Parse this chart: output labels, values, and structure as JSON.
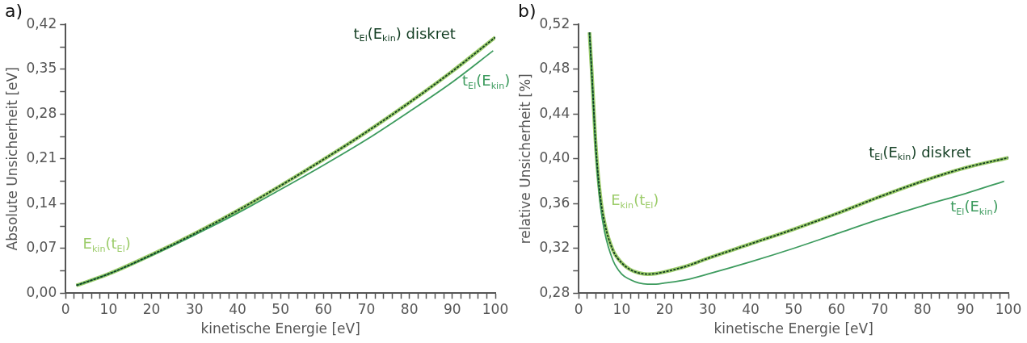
{
  "chart_data": [
    {
      "type": "line",
      "title": "a)",
      "xlabel": "kinetische Energie [eV]",
      "ylabel": "Absolute Unsicherheit [eV]",
      "xlim": [
        0,
        100
      ],
      "ylim": [
        0,
        0.42
      ],
      "xticks": [
        0,
        {
          "value": 2,
          "label": null
        },
        {
          "value": 4,
          "label": null
        },
        {
          "value": 6,
          "label": null
        },
        {
          "value": 8,
          "label": null
        },
        10,
        {
          "value": 12,
          "label": null
        },
        {
          "value": 14,
          "label": null
        },
        {
          "value": 16,
          "label": null
        },
        {
          "value": 18,
          "label": null
        },
        20,
        {
          "value": 22,
          "label": null
        },
        {
          "value": 24,
          "label": null
        },
        {
          "value": 26,
          "label": null
        },
        {
          "value": 28,
          "label": null
        },
        30,
        {
          "value": 32,
          "label": null
        },
        {
          "value": 34,
          "label": null
        },
        {
          "value": 36,
          "label": null
        },
        {
          "value": 38,
          "label": null
        },
        40,
        {
          "value": 42,
          "label": null
        },
        {
          "value": 44,
          "label": null
        },
        {
          "value": 46,
          "label": null
        },
        {
          "value": 48,
          "label": null
        },
        50,
        {
          "value": 52,
          "label": null
        },
        {
          "value": 54,
          "label": null
        },
        {
          "value": 56,
          "label": null
        },
        {
          "value": 58,
          "label": null
        },
        60,
        {
          "value": 62,
          "label": null
        },
        {
          "value": 64,
          "label": null
        },
        {
          "value": 66,
          "label": null
        },
        {
          "value": 68,
          "label": null
        },
        70,
        {
          "value": 72,
          "label": null
        },
        {
          "value": 74,
          "label": null
        },
        {
          "value": 76,
          "label": null
        },
        {
          "value": 78,
          "label": null
        },
        80,
        {
          "value": 82,
          "label": null
        },
        {
          "value": 84,
          "label": null
        },
        {
          "value": 86,
          "label": null
        },
        {
          "value": 88,
          "label": null
        },
        90,
        {
          "value": 92,
          "label": null
        },
        {
          "value": 94,
          "label": null
        },
        {
          "value": 96,
          "label": null
        },
        {
          "value": 98,
          "label": null
        },
        100
      ],
      "yticks": [
        {
          "value": 0,
          "label": "0,00"
        },
        {
          "value": 0.035,
          "label": null
        },
        {
          "value": 0.07,
          "label": "0,07"
        },
        {
          "value": 0.105,
          "label": null
        },
        {
          "value": 0.14,
          "label": "0,14"
        },
        {
          "value": 0.175,
          "label": null
        },
        {
          "value": 0.21,
          "label": "0,21"
        },
        {
          "value": 0.245,
          "label": null
        },
        {
          "value": 0.28,
          "label": "0,28"
        },
        {
          "value": 0.315,
          "label": null
        },
        {
          "value": 0.35,
          "label": "0,35"
        },
        {
          "value": 0.385,
          "label": null
        },
        {
          "value": 0.42,
          "label": "0,42"
        }
      ],
      "grid": false,
      "legend": false,
      "marker": "none",
      "series": [
        {
          "name": "E$_{kin}$(t$_{El}$)",
          "color": "#9ccc6a",
          "line_style": "solid",
          "x": [
            2.5,
            10,
            20,
            30,
            40,
            50,
            60,
            70,
            80,
            90,
            100
          ],
          "values": [
            0.012,
            0.03,
            0.06,
            0.093,
            0.129,
            0.168,
            0.209,
            0.252,
            0.298,
            0.347,
            0.4
          ]
        },
        {
          "name": "t$_{El}$(E$_{kin}$) diskret",
          "color": "#123d22",
          "line_style": "dashed",
          "x": [
            2.5,
            10,
            20,
            30,
            40,
            50,
            60,
            70,
            80,
            90,
            100
          ],
          "values": [
            0.012,
            0.03,
            0.06,
            0.093,
            0.129,
            0.168,
            0.209,
            0.252,
            0.298,
            0.347,
            0.4
          ]
        },
        {
          "name": "t$_{El}$(E$_{kin}$)",
          "color": "#3d9b5e",
          "line_style": "solid",
          "x": [
            2.5,
            10,
            20,
            30,
            40,
            50,
            60,
            70,
            80,
            90,
            99.5
          ],
          "values": [
            0.012,
            0.03,
            0.059,
            0.091,
            0.125,
            0.162,
            0.2,
            0.24,
            0.284,
            0.33,
            0.379
          ]
        }
      ]
    },
    {
      "type": "line",
      "title": "b)",
      "xlabel": "kinetische Energie [eV]",
      "ylabel": "relative Unsicherheit [%]",
      "xlim": [
        0,
        100
      ],
      "ylim": [
        0.28,
        0.52
      ],
      "xticks": [
        0,
        {
          "value": 2,
          "label": null
        },
        {
          "value": 4,
          "label": null
        },
        {
          "value": 6,
          "label": null
        },
        {
          "value": 8,
          "label": null
        },
        10,
        {
          "value": 12,
          "label": null
        },
        {
          "value": 14,
          "label": null
        },
        {
          "value": 16,
          "label": null
        },
        {
          "value": 18,
          "label": null
        },
        20,
        {
          "value": 22,
          "label": null
        },
        {
          "value": 24,
          "label": null
        },
        {
          "value": 26,
          "label": null
        },
        {
          "value": 28,
          "label": null
        },
        30,
        {
          "value": 32,
          "label": null
        },
        {
          "value": 34,
          "label": null
        },
        {
          "value": 36,
          "label": null
        },
        {
          "value": 38,
          "label": null
        },
        40,
        {
          "value": 42,
          "label": null
        },
        {
          "value": 44,
          "label": null
        },
        {
          "value": 46,
          "label": null
        },
        {
          "value": 48,
          "label": null
        },
        50,
        {
          "value": 52,
          "label": null
        },
        {
          "value": 54,
          "label": null
        },
        {
          "value": 56,
          "label": null
        },
        {
          "value": 58,
          "label": null
        },
        60,
        {
          "value": 62,
          "label": null
        },
        {
          "value": 64,
          "label": null
        },
        {
          "value": 66,
          "label": null
        },
        {
          "value": 68,
          "label": null
        },
        70,
        {
          "value": 72,
          "label": null
        },
        {
          "value": 74,
          "label": null
        },
        {
          "value": 76,
          "label": null
        },
        {
          "value": 78,
          "label": null
        },
        80,
        {
          "value": 82,
          "label": null
        },
        {
          "value": 84,
          "label": null
        },
        {
          "value": 86,
          "label": null
        },
        {
          "value": 88,
          "label": null
        },
        90,
        {
          "value": 92,
          "label": null
        },
        {
          "value": 94,
          "label": null
        },
        {
          "value": 96,
          "label": null
        },
        {
          "value": 98,
          "label": null
        },
        100
      ],
      "yticks": [
        {
          "value": 0.28,
          "label": "0,28"
        },
        {
          "value": 0.3,
          "label": null
        },
        {
          "value": 0.32,
          "label": "0,32"
        },
        {
          "value": 0.34,
          "label": null
        },
        {
          "value": 0.36,
          "label": "0,36"
        },
        {
          "value": 0.38,
          "label": null
        },
        {
          "value": 0.4,
          "label": "0,40"
        },
        {
          "value": 0.42,
          "label": null
        },
        {
          "value": 0.44,
          "label": "0,44"
        },
        {
          "value": 0.46,
          "label": null
        },
        {
          "value": 0.48,
          "label": "0,48"
        },
        {
          "value": 0.5,
          "label": null
        },
        {
          "value": 0.52,
          "label": "0,52"
        }
      ],
      "grid": false,
      "legend": false,
      "marker": "none",
      "series": [
        {
          "name": "E$_{kin}$(t$_{El}$)",
          "color": "#9ccc6a",
          "line_style": "solid",
          "x": [
            2.5,
            3,
            4,
            5,
            6,
            8,
            10,
            12,
            14,
            16,
            18,
            20,
            25,
            30,
            40,
            50,
            60,
            70,
            80,
            90,
            100
          ],
          "values": [
            0.513,
            0.48,
            0.41,
            0.367,
            0.343,
            0.318,
            0.307,
            0.301,
            0.298,
            0.297,
            0.2975,
            0.299,
            0.304,
            0.311,
            0.324,
            0.337,
            0.351,
            0.366,
            0.38,
            0.392,
            0.401
          ]
        },
        {
          "name": "t$_{El}$(E$_{kin}$) diskret",
          "color": "#123d22",
          "line_style": "dashed",
          "x": [
            2.5,
            3,
            4,
            5,
            6,
            8,
            10,
            12,
            14,
            16,
            18,
            20,
            25,
            30,
            40,
            50,
            60,
            70,
            80,
            90,
            100
          ],
          "values": [
            0.513,
            0.48,
            0.41,
            0.367,
            0.343,
            0.318,
            0.307,
            0.301,
            0.298,
            0.297,
            0.2975,
            0.299,
            0.304,
            0.311,
            0.324,
            0.337,
            0.351,
            0.366,
            0.38,
            0.392,
            0.401
          ]
        },
        {
          "name": "t$_{El}$(E$_{kin}$)",
          "color": "#3d9b5e",
          "line_style": "solid",
          "x": [
            2.5,
            3,
            4,
            5,
            6,
            8,
            10,
            12,
            14,
            16,
            18,
            20,
            25,
            30,
            40,
            50,
            60,
            70,
            80,
            90,
            99
          ],
          "values": [
            0.513,
            0.478,
            0.405,
            0.36,
            0.335,
            0.309,
            0.297,
            0.292,
            0.289,
            0.288,
            0.288,
            0.289,
            0.292,
            0.297,
            0.308,
            0.32,
            0.333,
            0.346,
            0.358,
            0.369,
            0.38
          ]
        }
      ]
    }
  ]
}
